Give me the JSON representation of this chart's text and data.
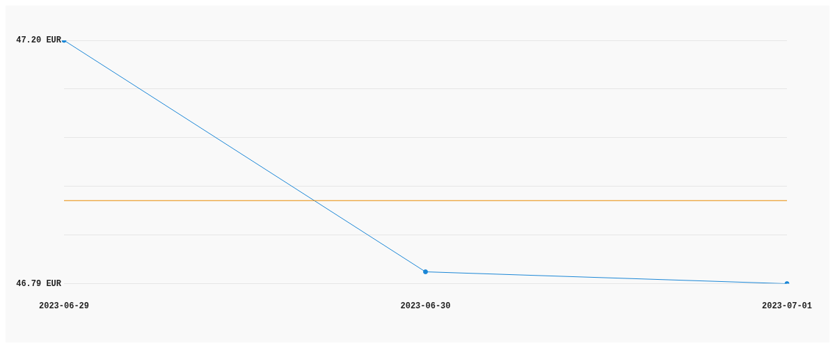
{
  "chart_data": {
    "type": "line",
    "categories": [
      "2023-06-29",
      "2023-06-30",
      "2023-07-01"
    ],
    "series": [
      {
        "color": "#1a86d6",
        "values": [
          47.2,
          46.81,
          46.79
        ]
      }
    ],
    "ylim": [
      46.79,
      47.2
    ],
    "yticks": [
      {
        "value": 46.79,
        "label": "46.79 EUR"
      },
      {
        "value": 46.872,
        "label": null
      },
      {
        "value": 46.954,
        "label": null
      },
      {
        "value": 47.036,
        "label": null
      },
      {
        "value": 47.118,
        "label": null
      },
      {
        "value": 47.2,
        "label": "47.20 EUR"
      }
    ],
    "ref_lines": [
      {
        "axis": "y",
        "value": 46.93,
        "color": "#e88a00"
      }
    ],
    "grid": "y",
    "legend": false,
    "marker": "circle",
    "line_style": "solid"
  }
}
